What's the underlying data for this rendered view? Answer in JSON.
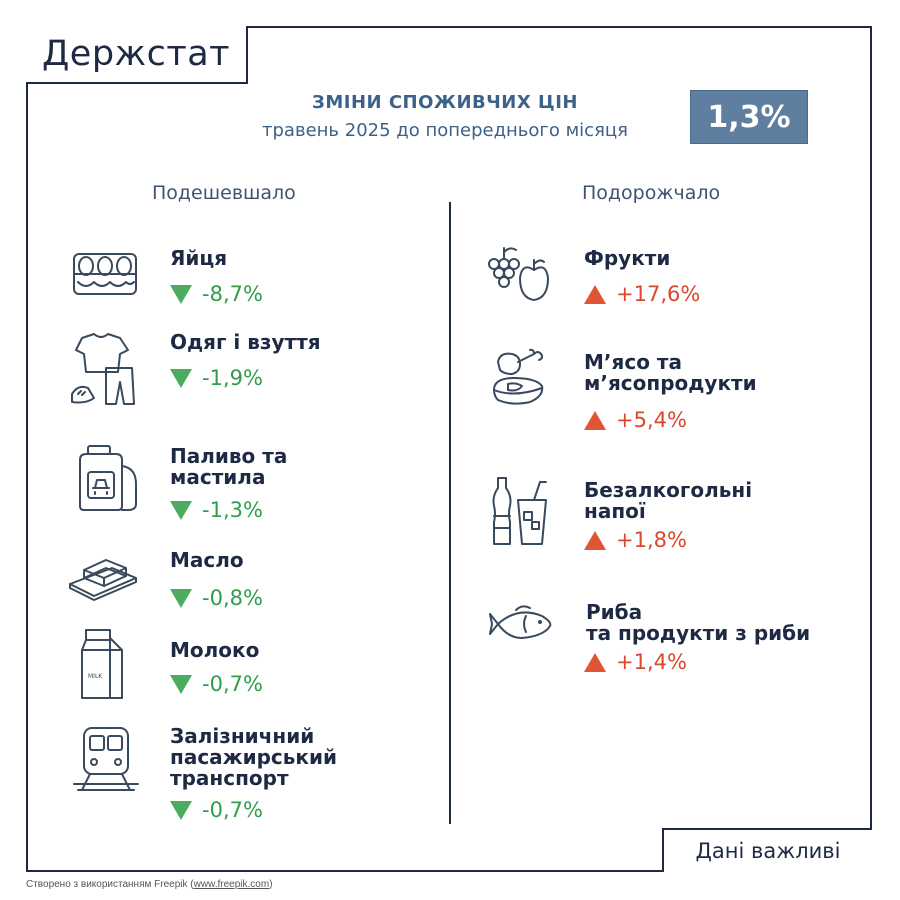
{
  "brand": {
    "logo_text": "Держстат"
  },
  "header": {
    "title": "ЗМІНИ СПОЖИВЧИХ ЦІН",
    "subtitle": "травень 2025 до попереднього місяця",
    "total_change": "1,3%"
  },
  "cheaper": {
    "title": "Подешевшало",
    "items": [
      {
        "line1": "Яйця",
        "line2": "",
        "line3": "",
        "value": "-8,7%",
        "icon": "eggs-icon"
      },
      {
        "line1": "Одяг і взуття",
        "line2": "",
        "line3": "",
        "value": "-1,9%",
        "icon": "clothes-icon"
      },
      {
        "line1": "Паливо та",
        "line2": "мастила",
        "line3": "",
        "value": "-1,3%",
        "icon": "fuel-canister-icon"
      },
      {
        "line1": "Масло",
        "line2": "",
        "line3": "",
        "value": "-0,8%",
        "icon": "butter-icon"
      },
      {
        "line1": "Молоко",
        "line2": "",
        "line3": "",
        "value": "-0,7%",
        "icon": "milk-carton-icon"
      },
      {
        "line1": "Залізничний",
        "line2": "пасажирський",
        "line3": "транспорт",
        "value": "-0,7%",
        "icon": "train-icon"
      }
    ]
  },
  "pricier": {
    "title": "Подорожчало",
    "items": [
      {
        "line1": "Фрукти",
        "line2": "",
        "value": "+17,6%",
        "icon": "fruits-icon"
      },
      {
        "line1": "М’ясо та",
        "line2": "м’ясопродукти",
        "value": "+5,4%",
        "icon": "meat-icon"
      },
      {
        "line1": "Безалкогольні",
        "line2": "напої",
        "value": "+1,8%",
        "icon": "soft-drinks-icon"
      },
      {
        "line1": "Риба",
        "line2": "та продукти з риби",
        "value": "+1,4%",
        "icon": "fish-icon"
      }
    ]
  },
  "footer": {
    "important": "Дані важливі",
    "credit_prefix": "Створено з використанням Freepik (",
    "credit_link": "www.freepik.com",
    "credit_suffix": ")"
  },
  "colors": {
    "navy": "#1e2a44",
    "accent": "#3d6189",
    "badge": "#5f7fa1",
    "down": "#2e9e4a",
    "up": "#d9482b"
  }
}
